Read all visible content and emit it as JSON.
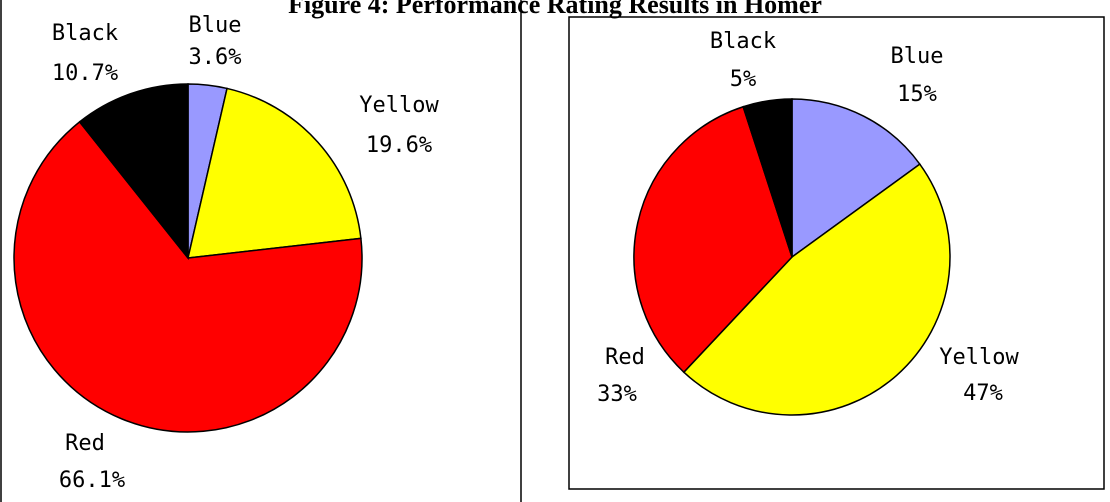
{
  "title": "Figure 4: Performance Rating Results in Homer",
  "chart_data": [
    {
      "type": "pie",
      "categories": [
        "Blue",
        "Yellow",
        "Red",
        "Black"
      ],
      "values": [
        3.6,
        19.6,
        66.1,
        10.7
      ],
      "value_labels": [
        "3.6%",
        "19.6%",
        "66.1%",
        "10.7%"
      ],
      "colors": [
        "#9999ff",
        "#ffff00",
        "#ff0000",
        "#000000"
      ],
      "start": "12 o'clock",
      "direction": "clockwise"
    },
    {
      "type": "pie",
      "categories": [
        "Blue",
        "Yellow",
        "Red",
        "Black"
      ],
      "values": [
        15,
        47,
        33,
        5
      ],
      "value_labels": [
        "15%",
        "47%",
        "33%",
        "5%"
      ],
      "colors": [
        "#9999ff",
        "#ffff00",
        "#ff0000",
        "#000000"
      ],
      "start": "12 o'clock",
      "direction": "clockwise"
    }
  ]
}
